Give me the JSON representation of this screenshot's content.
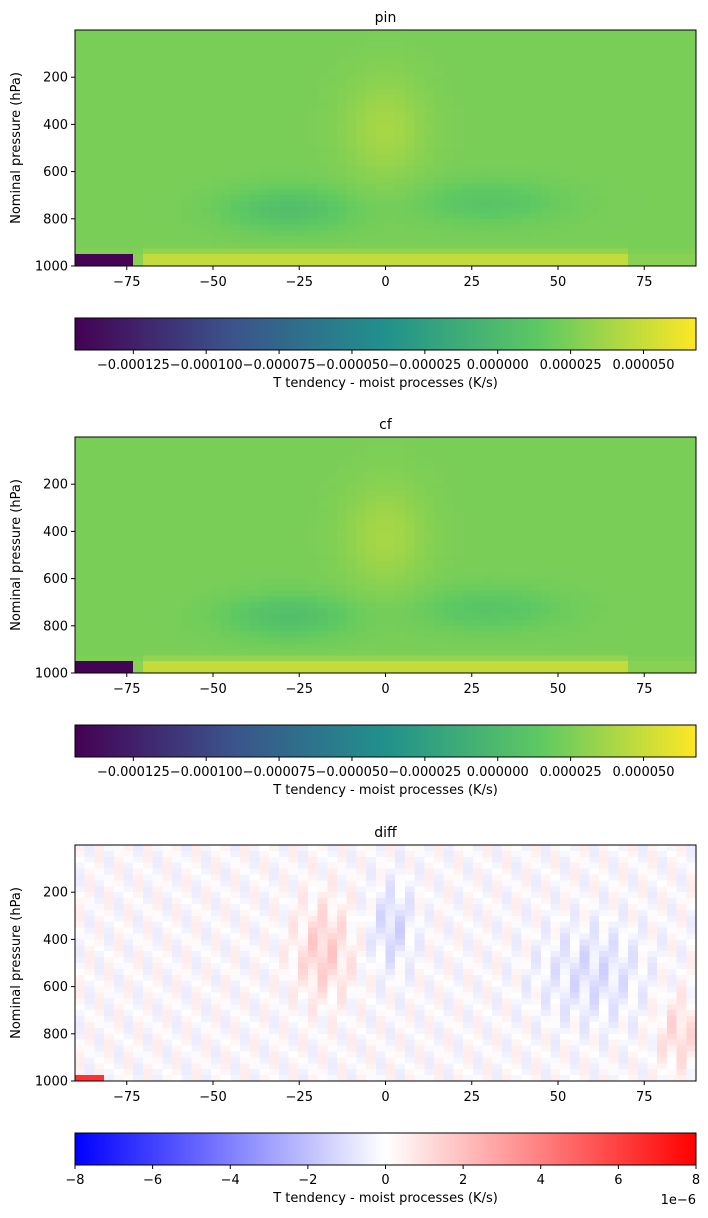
{
  "chart_data": [
    {
      "type": "heatmap",
      "title": "pin",
      "ylabel": "Nominal pressure (hPa)",
      "xlim": [
        -90,
        90
      ],
      "ylim": [
        1000,
        0
      ],
      "xticks": [
        "-75",
        "-50",
        "-25",
        "0",
        "25",
        "50",
        "75"
      ],
      "yticks": [
        "200",
        "400",
        "600",
        "800",
        "1000"
      ],
      "colormap": "viridis",
      "colorbar": {
        "label": "T tendency - moist processes (K/s)",
        "range": [
          -0.000145,
          6.8e-05
        ],
        "ticks": [
          "-0.000125",
          "-0.000100",
          "-0.000075",
          "-0.000050",
          "-0.000025",
          "0.000000",
          "0.000025",
          "0.000050"
        ],
        "colors": [
          "#440154",
          "#3b528b",
          "#21918c",
          "#5ec962",
          "#fde725"
        ]
      }
    },
    {
      "type": "heatmap",
      "title": "cf",
      "ylabel": "Nominal pressure (hPa)",
      "xlim": [
        -90,
        90
      ],
      "ylim": [
        1000,
        0
      ],
      "xticks": [
        "-75",
        "-50",
        "-25",
        "0",
        "25",
        "50",
        "75"
      ],
      "yticks": [
        "200",
        "400",
        "600",
        "800",
        "1000"
      ],
      "colormap": "viridis",
      "colorbar": {
        "label": "T tendency - moist processes (K/s)",
        "range": [
          -0.000145,
          6.8e-05
        ],
        "ticks": [
          "-0.000125",
          "-0.000100",
          "-0.000075",
          "-0.000050",
          "-0.000025",
          "0.000000",
          "0.000025",
          "0.000050"
        ],
        "colors": [
          "#440154",
          "#3b528b",
          "#21918c",
          "#5ec962",
          "#fde725"
        ]
      }
    },
    {
      "type": "heatmap",
      "title": "diff",
      "ylabel": "Nominal pressure (hPa)",
      "xlim": [
        -90,
        90
      ],
      "ylim": [
        1000,
        0
      ],
      "xticks": [
        "-75",
        "-50",
        "-25",
        "0",
        "25",
        "50",
        "75"
      ],
      "yticks": [
        "200",
        "400",
        "600",
        "800",
        "1000"
      ],
      "colormap": "bwr",
      "colorbar": {
        "label": "T tendency - moist processes (K/s)",
        "range": [
          -8,
          8
        ],
        "ticks": [
          "-8",
          "-6",
          "-4",
          "-2",
          "0",
          "2",
          "4",
          "6",
          "8"
        ],
        "offset_text": "1e−6",
        "colors": [
          "#0000ff",
          "#ffffff",
          "#ff0000"
        ]
      }
    }
  ]
}
